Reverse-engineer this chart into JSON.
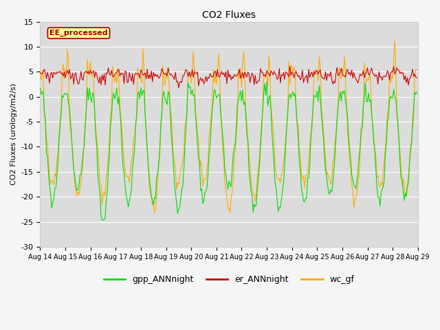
{
  "title": "CO2 Fluxes",
  "ylabel": "CO2 Fluxes (urology/m2/s)",
  "xlabel": "",
  "ylim": [
    -30,
    15
  ],
  "yticks": [
    -30,
    -25,
    -20,
    -15,
    -10,
    -5,
    0,
    5,
    10,
    15
  ],
  "xlim": [
    0,
    360
  ],
  "xtick_labels": [
    "Aug 14",
    "Aug 15",
    "Aug 16",
    "Aug 17",
    "Aug 18",
    "Aug 19",
    "Aug 20",
    "Aug 21",
    "Aug 22",
    "Aug 23",
    "Aug 24",
    "Aug 25",
    "Aug 26",
    "Aug 27",
    "Aug 28",
    "Aug 29"
  ],
  "xtick_positions": [
    0,
    24,
    48,
    72,
    96,
    120,
    144,
    168,
    192,
    216,
    240,
    264,
    288,
    312,
    336,
    360
  ],
  "colors": {
    "gpp": "#00dd00",
    "er": "#cc0000",
    "wc": "#ffaa00"
  },
  "annotation_text": "EE_processed",
  "annotation_color": "#990000",
  "annotation_bg": "#ffff99",
  "legend_labels": [
    "gpp_ANNnight",
    "er_ANNnight",
    "wc_gf"
  ],
  "plot_bg_color": "#dcdcdc",
  "fig_bg_color": "#f5f5f5",
  "grid_color": "#ffffff",
  "linewidth": 0.8,
  "n_points": 360
}
